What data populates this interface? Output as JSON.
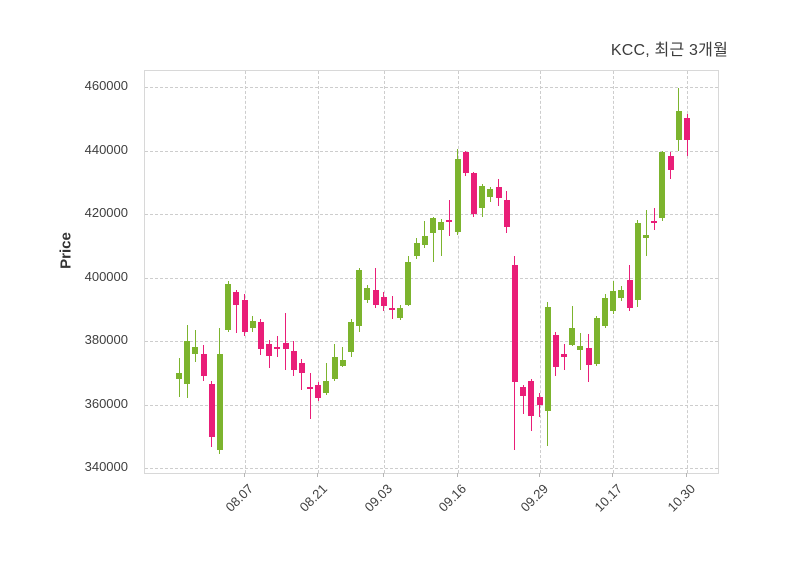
{
  "chart_data": {
    "type": "candlestick",
    "title": "KCC, 최근 3개월",
    "ylabel": "Price",
    "grid": true,
    "legend_position": "none",
    "up_color": "#7cb42e",
    "down_color": "#e91e78",
    "grid_color": "#cdcdcd",
    "text_color": "#3f3f3f",
    "y_ticks": [
      340000,
      360000,
      380000,
      400000,
      420000,
      440000,
      460000
    ],
    "y_range": [
      338400,
      465200
    ],
    "x_tick_labels": [
      "08.07",
      "08.21",
      "09.03",
      "09.16",
      "09.29",
      "10.17",
      "10.30"
    ],
    "x_tick_indices": [
      8,
      17,
      25,
      34,
      44,
      53,
      62
    ],
    "candle_format": [
      "open",
      "high",
      "low",
      "close"
    ],
    "candles": [
      [
        368200,
        374700,
        362400,
        369900
      ],
      [
        366400,
        385200,
        362000,
        380000
      ],
      [
        376000,
        383500,
        373500,
        378000
      ],
      [
        375800,
        378700,
        367500,
        369100
      ],
      [
        366500,
        367500,
        346700,
        349800
      ],
      [
        345600,
        384000,
        344400,
        375800
      ],
      [
        383600,
        399000,
        383000,
        398000
      ],
      [
        395400,
        396200,
        382500,
        391500
      ],
      [
        393000,
        395000,
        381500,
        383000
      ],
      [
        384000,
        388000,
        383000,
        386500
      ],
      [
        386000,
        387000,
        375500,
        377500
      ],
      [
        379000,
        380500,
        371500,
        375300
      ],
      [
        378000,
        381500,
        375000,
        377500
      ],
      [
        379300,
        389000,
        371000,
        377400
      ],
      [
        377000,
        380000,
        369000,
        371000
      ],
      [
        373000,
        374500,
        364500,
        370000
      ],
      [
        365500,
        370000,
        355500,
        365000
      ],
      [
        366300,
        367000,
        361000,
        362000
      ],
      [
        363700,
        373000,
        363000,
        367400
      ],
      [
        368000,
        379000,
        367500,
        375000
      ],
      [
        372200,
        378000,
        371800,
        374000
      ],
      [
        376500,
        387000,
        375000,
        386000
      ],
      [
        384700,
        403000,
        383000,
        402300
      ],
      [
        393100,
        397700,
        392000,
        396700
      ],
      [
        396200,
        403000,
        390500,
        391500
      ],
      [
        393800,
        395400,
        389400,
        391000
      ],
      [
        390500,
        394300,
        387000,
        390000
      ],
      [
        387200,
        391500,
        386500,
        390600
      ],
      [
        391500,
        407000,
        391000,
        405000
      ],
      [
        406700,
        412500,
        406000,
        411000
      ],
      [
        410300,
        418000,
        409500,
        413100
      ],
      [
        414000,
        419200,
        405000,
        418700
      ],
      [
        415000,
        418500,
        407000,
        417700
      ],
      [
        418200,
        424500,
        413000,
        418000
      ],
      [
        414500,
        440500,
        413500,
        437500
      ],
      [
        439500,
        440000,
        432000,
        433000
      ],
      [
        433000,
        433500,
        419000,
        420000
      ],
      [
        422000,
        429500,
        419000,
        429000
      ],
      [
        425400,
        428500,
        424000,
        428100
      ],
      [
        428500,
        431000,
        422500,
        425000
      ],
      [
        424400,
        427500,
        414000,
        416000
      ],
      [
        404000,
        407000,
        345500,
        367000
      ],
      [
        365500,
        366000,
        357000,
        362700
      ],
      [
        367500,
        368000,
        351500,
        356500
      ],
      [
        362300,
        363600,
        356000,
        359700
      ],
      [
        357900,
        392200,
        347000,
        390900
      ],
      [
        381800,
        382800,
        369000,
        371900
      ],
      [
        376000,
        379000,
        371000,
        375000
      ],
      [
        378900,
        391000,
        378300,
        384100
      ],
      [
        377100,
        382500,
        371000,
        378400
      ],
      [
        377700,
        382200,
        367200,
        372400
      ],
      [
        372700,
        388000,
        372000,
        387300
      ],
      [
        384700,
        395000,
        384000,
        393600
      ],
      [
        389400,
        399000,
        388500,
        395700
      ],
      [
        393600,
        397500,
        392500,
        396200
      ],
      [
        399300,
        404000,
        389500,
        390500
      ],
      [
        393000,
        418200,
        390900,
        417400
      ],
      [
        412500,
        421500,
        407000,
        413500
      ],
      [
        418000,
        422000,
        415000,
        417500
      ],
      [
        418700,
        440000,
        418000,
        439600
      ],
      [
        438500,
        439500,
        431000,
        434000
      ],
      [
        443500,
        459800,
        440000,
        452700
      ],
      [
        450300,
        451500,
        438500,
        443400
      ]
    ]
  }
}
